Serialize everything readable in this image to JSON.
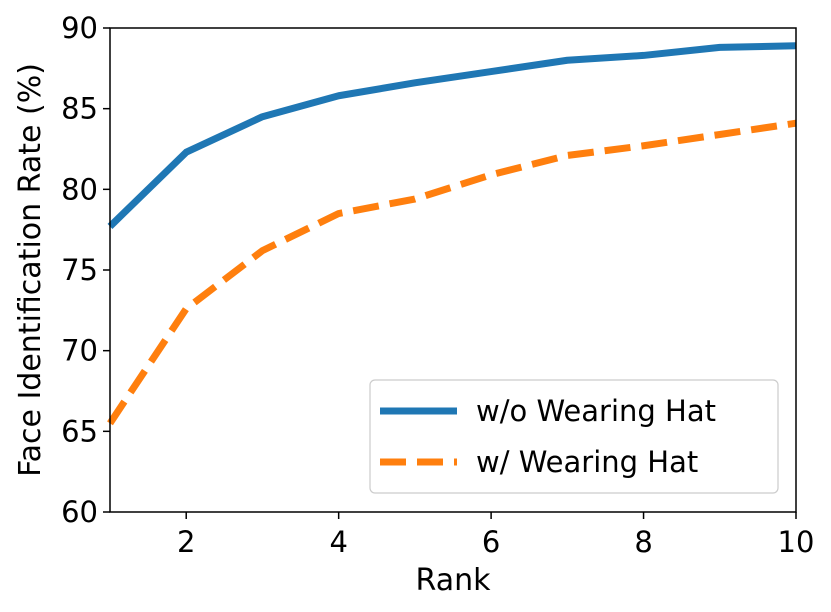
{
  "chart_data": {
    "type": "line",
    "xlabel": "Rank",
    "ylabel": "Face Identification Rate (%)",
    "xlim": [
      1,
      10
    ],
    "ylim": [
      60,
      90
    ],
    "xticks": [
      2,
      4,
      6,
      8,
      10
    ],
    "yticks": [
      60,
      65,
      70,
      75,
      80,
      85,
      90
    ],
    "grid": false,
    "legend_position": "lower-right",
    "x": [
      1,
      2,
      3,
      4,
      5,
      6,
      7,
      8,
      9,
      10
    ],
    "series": [
      {
        "name": "w/o Wearing Hat",
        "values": [
          77.7,
          82.3,
          84.5,
          85.8,
          86.6,
          87.3,
          88.0,
          88.3,
          88.8,
          88.9
        ],
        "color": "#1f77b4",
        "style": "solid"
      },
      {
        "name": "w/ Wearing Hat",
        "values": [
          65.5,
          72.6,
          76.2,
          78.5,
          79.4,
          80.9,
          82.1,
          82.7,
          83.4,
          84.1
        ],
        "color": "#ff7f0e",
        "style": "dashed"
      }
    ]
  }
}
